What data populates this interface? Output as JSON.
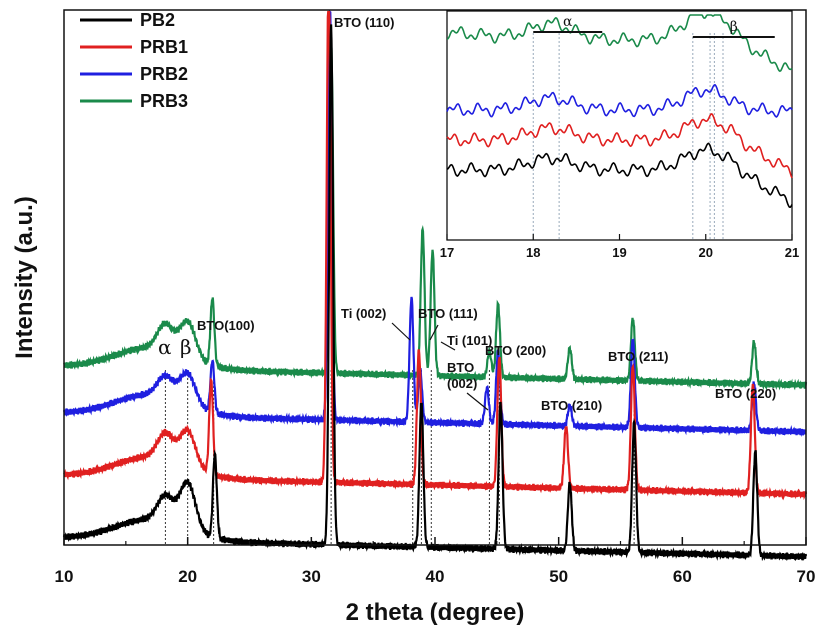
{
  "chart_data": {
    "type": "line",
    "xlabel": "2 theta (degree)",
    "ylabel": "Intensity (a.u.)",
    "xlim": [
      10,
      70
    ],
    "xticks": [
      "10",
      "20",
      "30",
      "40",
      "50",
      "60",
      "70"
    ],
    "legend": [
      "PB2",
      "PRB1",
      "PRB2",
      "PRB3"
    ],
    "colors": {
      "PB2": "#000000",
      "PRB1": "#e02020",
      "PRB2": "#1f1fe0",
      "PRB3": "#1a8a4a"
    },
    "series": [
      {
        "name": "PB2",
        "baseline": 0.0,
        "peaks": [
          [
            18.2,
            0.05
          ],
          [
            20.0,
            0.09
          ],
          [
            22.2,
            0.16
          ],
          [
            31.6,
            1.0
          ],
          [
            38.9,
            0.28
          ],
          [
            45.3,
            0.28
          ],
          [
            50.9,
            0.13
          ],
          [
            56.1,
            0.25
          ],
          [
            65.9,
            0.2
          ]
        ]
      },
      {
        "name": "PRB1",
        "baseline": 0.12,
        "peaks": [
          [
            18.2,
            0.05
          ],
          [
            20.0,
            0.07
          ],
          [
            21.9,
            0.18
          ],
          [
            31.4,
            0.98
          ],
          [
            38.7,
            0.26
          ],
          [
            45.2,
            0.25
          ],
          [
            50.6,
            0.12
          ],
          [
            56.0,
            0.24
          ],
          [
            65.7,
            0.21
          ]
        ]
      },
      {
        "name": "PRB2",
        "baseline": 0.24,
        "peaks": [
          [
            18.2,
            0.04
          ],
          [
            20.0,
            0.06
          ],
          [
            22.0,
            0.1
          ],
          [
            31.5,
            0.8
          ],
          [
            38.1,
            0.24
          ],
          [
            38.8,
            0.1
          ],
          [
            44.2,
            0.07
          ],
          [
            45.1,
            0.14
          ],
          [
            50.9,
            0.04
          ],
          [
            56.0,
            0.17
          ],
          [
            65.8,
            0.09
          ]
        ]
      },
      {
        "name": "PRB3",
        "baseline": 0.33,
        "peaks": [
          [
            18.2,
            0.05
          ],
          [
            20.0,
            0.07
          ],
          [
            22.0,
            0.13
          ],
          [
            31.6,
            0.64
          ],
          [
            39.0,
            0.28
          ],
          [
            39.8,
            0.24
          ],
          [
            44.4,
            0.05
          ],
          [
            45.1,
            0.14
          ],
          [
            50.9,
            0.06
          ],
          [
            56.0,
            0.12
          ],
          [
            65.8,
            0.08
          ]
        ]
      }
    ],
    "annotations": [
      {
        "text": "BTO (110)",
        "x": 31.6
      },
      {
        "text": "BTO(100)",
        "x": 22.0
      },
      {
        "text": "Ti (002)",
        "x": 38.1
      },
      {
        "text": "BTO (111)",
        "x": 39.0
      },
      {
        "text": "Ti (101)",
        "x": 39.8
      },
      {
        "text": "BTO",
        "x": 44.4
      },
      {
        "text": "(002)",
        "x": 44.4
      },
      {
        "text": "BTO (200)",
        "x": 45.2
      },
      {
        "text": "BTO (210)",
        "x": 50.9
      },
      {
        "text": "BTO (211)",
        "x": 56.0
      },
      {
        "text": "BTO (220)",
        "x": 65.8
      }
    ],
    "greek": {
      "alpha": "α",
      "beta": "β"
    },
    "reference_lines": [
      18.2,
      20.0,
      22.1,
      31.6,
      38.2,
      38.9,
      39.7,
      44.4,
      45.2,
      56.1
    ],
    "inset": {
      "xlim": [
        17,
        21
      ],
      "xticks": [
        "17",
        "18",
        "19",
        "20",
        "21"
      ],
      "alpha_label": "α",
      "alpha_range": [
        18.0,
        18.8
      ],
      "beta_label": "β",
      "beta_range": [
        19.85,
        20.8
      ],
      "reference_lines": [
        18.0,
        18.3,
        19.85,
        20.05,
        20.1,
        20.2
      ]
    }
  }
}
